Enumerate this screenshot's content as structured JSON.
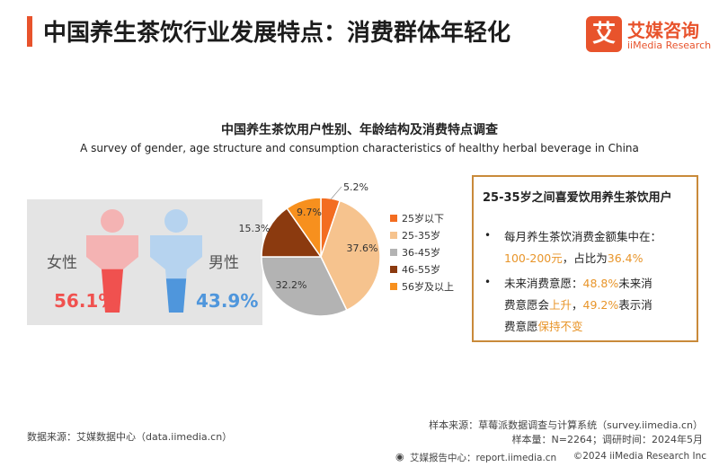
{
  "header": {
    "title": "中国养生茶饮行业发展特点：消费群体年轻化",
    "logo_cn": "艾媒咨询",
    "logo_en": "iiMedia Research",
    "logo_glyph": "艾"
  },
  "chart_data": [
    {
      "type": "pictograph",
      "title": "中国养生茶饮用户性别、年龄结构及消费特点调查",
      "subtitle": "A survey of gender, age structure and consumption characteristics of healthy herbal beverage in China",
      "categories": [
        "女性",
        "男性"
      ],
      "values": [
        56.1,
        43.9
      ],
      "value_labels": [
        "56.1%",
        "43.9%"
      ],
      "colors": [
        "#f0514f",
        "#4f96dc"
      ]
    },
    {
      "type": "pie",
      "categories": [
        "25岁以下",
        "25-35岁",
        "36-45岁",
        "46-55岁",
        "56岁及以上"
      ],
      "values": [
        5.2,
        37.6,
        32.2,
        15.3,
        9.7
      ],
      "value_labels": [
        "5.2%",
        "37.6%",
        "32.2%",
        "15.3%",
        "9.7%"
      ],
      "colors": [
        "#f36d21",
        "#f6c38e",
        "#b3b3b3",
        "#8b3a0f",
        "#f7901e"
      ],
      "legend_position": "right"
    }
  ],
  "info_box": {
    "heading": "25-35岁之间喜爱饮用养生茶饮用户",
    "bullet": "•",
    "p1_l1": "每月养生茶饮消费金额集中在：",
    "p1_l2_hl1": "100-200元",
    "p1_l2_t2": "，占比为",
    "p1_l2_hl2": "36.4%",
    "p2_l1_t1": "未来消费意愿：",
    "p2_l1_hl1": "48.8%",
    "p2_l1_t2": "未来消",
    "p2_l2_t1": "费意愿会",
    "p2_l2_hl1": "上升",
    "p2_l2_t2": "，",
    "p2_l2_hl2": "49.2%",
    "p2_l2_t3": "表示消",
    "p2_l3_t1": "费意愿",
    "p2_l3_hl1": "保持不变"
  },
  "footer": {
    "data_source": "数据来源：艾媒数据中心（data.iimedia.cn）",
    "sample_source": "样本来源：草莓派数据调查与计算系统（survey.iimedia.cn）",
    "sample_info": "样本量：N=2264；调研时间：2024年5月",
    "report_center": "艾媒报告中心：report.iimedia.cn",
    "copyright": "©2024  iiMedia Research  Inc"
  }
}
